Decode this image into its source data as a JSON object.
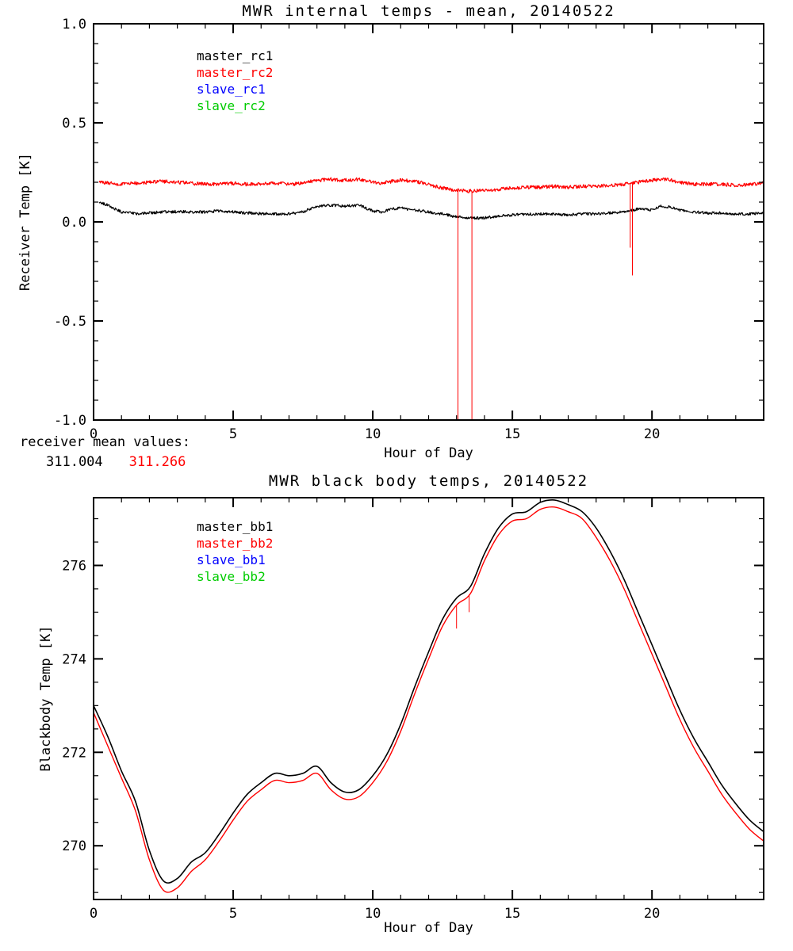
{
  "page": {
    "background": "#ffffff"
  },
  "annotation": {
    "label": "receiver mean values:",
    "values": [
      {
        "text": "311.004",
        "color": "#000000"
      },
      {
        "text": "311.266",
        "color": "#ff0000"
      }
    ]
  },
  "chart_data": [
    {
      "type": "line",
      "title": "MWR internal temps - mean, 20140522",
      "xlabel": "Hour of Day",
      "ylabel": "Receiver Temp [K]",
      "xlim": [
        0,
        24
      ],
      "ylim": [
        -1.0,
        1.0
      ],
      "xticks": [
        0,
        5,
        10,
        15,
        20
      ],
      "xtick_labels": [
        "0",
        "5",
        "10",
        "15",
        "20"
      ],
      "yticks": [
        -1.0,
        -0.5,
        0.0,
        0.5,
        1.0
      ],
      "ytick_labels": [
        "-1.0",
        "-0.5",
        "0.0",
        "0.5",
        "1.0"
      ],
      "minor_x": 1,
      "minor_y": 0.1,
      "grid": false,
      "legend_position": "upper-left-inside",
      "legend": [
        {
          "label": "master_rc1",
          "color": "#000000"
        },
        {
          "label": "master_rc2",
          "color": "#ff0000"
        },
        {
          "label": "slave_rc1",
          "color": "#0000ff"
        },
        {
          "label": "slave_rc2",
          "color": "#00cc00"
        }
      ],
      "series": [
        {
          "name": "master_rc1",
          "color": "#000000",
          "noise": 0.007,
          "width": 1.2,
          "x": [
            0.2,
            0.5,
            1,
            1.5,
            2,
            2.5,
            3,
            3.5,
            4,
            4.5,
            5,
            5.5,
            6,
            6.5,
            7,
            7.5,
            8,
            8.5,
            9,
            9.5,
            10,
            10.3,
            10.7,
            11,
            11.5,
            12,
            12.5,
            13,
            13.5,
            14,
            14.5,
            15,
            15.5,
            16,
            16.5,
            17,
            17.5,
            18,
            18.5,
            19,
            19.5,
            20,
            20.3,
            20.7,
            21,
            21.5,
            22,
            22.5,
            23,
            23.5,
            24
          ],
          "y": [
            0.1,
            0.085,
            0.05,
            0.042,
            0.045,
            0.05,
            0.052,
            0.05,
            0.05,
            0.055,
            0.05,
            0.045,
            0.042,
            0.04,
            0.04,
            0.05,
            0.08,
            0.085,
            0.08,
            0.085,
            0.055,
            0.05,
            0.065,
            0.07,
            0.06,
            0.05,
            0.04,
            0.025,
            0.02,
            0.02,
            0.03,
            0.035,
            0.04,
            0.04,
            0.04,
            0.035,
            0.04,
            0.04,
            0.045,
            0.05,
            0.065,
            0.06,
            0.08,
            0.075,
            0.06,
            0.05,
            0.045,
            0.045,
            0.04,
            0.04,
            0.045
          ]
        },
        {
          "name": "master_rc2",
          "color": "#ff0000",
          "noise": 0.009,
          "width": 1.2,
          "x": [
            0.2,
            0.5,
            1,
            1.5,
            2,
            2.5,
            3,
            3.5,
            4,
            4.5,
            5,
            5.5,
            6,
            6.5,
            7,
            7.5,
            8,
            8.5,
            9,
            9.5,
            10,
            10.3,
            10.7,
            11,
            11.5,
            12,
            12.5,
            13,
            13.5,
            14,
            14.5,
            15,
            15.5,
            16,
            16.5,
            17,
            17.5,
            18,
            18.5,
            19,
            19.5,
            20,
            20.3,
            20.7,
            21,
            21.5,
            22,
            22.5,
            23,
            23.5,
            24
          ],
          "y": [
            0.2,
            0.195,
            0.19,
            0.195,
            0.2,
            0.205,
            0.2,
            0.195,
            0.19,
            0.19,
            0.195,
            0.19,
            0.19,
            0.195,
            0.19,
            0.195,
            0.21,
            0.215,
            0.21,
            0.215,
            0.2,
            0.195,
            0.205,
            0.21,
            0.205,
            0.19,
            0.17,
            0.16,
            0.155,
            0.16,
            0.165,
            0.17,
            0.175,
            0.175,
            0.18,
            0.175,
            0.18,
            0.18,
            0.185,
            0.19,
            0.2,
            0.21,
            0.215,
            0.21,
            0.2,
            0.19,
            0.19,
            0.19,
            0.185,
            0.19,
            0.195
          ],
          "spikes": [
            {
              "x": 13.05,
              "to": -1.0
            },
            {
              "x": 13.55,
              "to": -1.0
            },
            {
              "x": 19.22,
              "to": -0.13
            },
            {
              "x": 19.3,
              "to": -0.27
            }
          ]
        }
      ]
    },
    {
      "type": "line",
      "title": "MWR black body temps, 20140522",
      "xlabel": "Hour of Day",
      "ylabel": "Blackbody Temp [K]",
      "xlim": [
        0,
        24
      ],
      "ylim": [
        268.85,
        277.45
      ],
      "xticks": [
        0,
        5,
        10,
        15,
        20
      ],
      "xtick_labels": [
        "0",
        "5",
        "10",
        "15",
        "20"
      ],
      "yticks": [
        270,
        272,
        274,
        276
      ],
      "ytick_labels": [
        "270",
        "272",
        "274",
        "276"
      ],
      "minor_x": 1,
      "minor_y": 0.5,
      "grid": false,
      "legend_position": "upper-left-inside",
      "legend": [
        {
          "label": "master_bb1",
          "color": "#000000"
        },
        {
          "label": "master_bb2",
          "color": "#ff0000"
        },
        {
          "label": "slave_bb1",
          "color": "#0000ff"
        },
        {
          "label": "slave_bb2",
          "color": "#00cc00"
        }
      ],
      "series": [
        {
          "name": "master_bb1",
          "color": "#000000",
          "smooth": true,
          "width": 1.6,
          "x": [
            0,
            0.5,
            1,
            1.5,
            2,
            2.5,
            3,
            3.5,
            4,
            4.5,
            5,
            5.5,
            6,
            6.5,
            7,
            7.5,
            8,
            8.5,
            9,
            9.5,
            10,
            10.5,
            11,
            11.5,
            12,
            12.5,
            13,
            13.5,
            14,
            14.5,
            15,
            15.5,
            16,
            16.5,
            17,
            17.5,
            18,
            18.5,
            19,
            19.5,
            20,
            20.5,
            21,
            21.5,
            22,
            22.5,
            23,
            23.5,
            24
          ],
          "y": [
            273.0,
            272.35,
            271.6,
            270.95,
            269.9,
            269.25,
            269.3,
            269.65,
            269.85,
            270.25,
            270.7,
            271.1,
            271.35,
            271.55,
            271.5,
            271.55,
            271.7,
            271.35,
            271.15,
            271.2,
            271.5,
            271.95,
            272.6,
            273.4,
            274.15,
            274.85,
            275.3,
            275.55,
            276.25,
            276.8,
            277.1,
            277.15,
            277.35,
            277.4,
            277.3,
            277.15,
            276.8,
            276.3,
            275.7,
            275.0,
            274.3,
            273.6,
            272.9,
            272.3,
            271.8,
            271.3,
            270.9,
            270.55,
            270.3
          ]
        },
        {
          "name": "master_bb2",
          "color": "#ff0000",
          "smooth": true,
          "width": 1.4,
          "x": [
            0,
            0.5,
            1,
            1.5,
            2,
            2.5,
            3,
            3.5,
            4,
            4.5,
            5,
            5.5,
            6,
            6.5,
            7,
            7.5,
            8,
            8.5,
            9,
            9.5,
            10,
            10.5,
            11,
            11.5,
            12,
            12.5,
            13,
            13.5,
            14,
            14.5,
            15,
            15.5,
            16,
            16.5,
            17,
            17.5,
            18,
            18.5,
            19,
            19.5,
            20,
            20.5,
            21,
            21.5,
            22,
            22.5,
            23,
            23.5,
            24
          ],
          "y": [
            272.85,
            272.15,
            271.45,
            270.75,
            269.7,
            269.05,
            269.1,
            269.45,
            269.7,
            270.1,
            270.55,
            270.95,
            271.2,
            271.4,
            271.35,
            271.4,
            271.55,
            271.2,
            271.0,
            271.05,
            271.35,
            271.8,
            272.45,
            273.25,
            274.0,
            274.7,
            275.15,
            275.4,
            276.1,
            276.65,
            276.95,
            277.0,
            277.2,
            277.25,
            277.15,
            277.0,
            276.6,
            276.1,
            275.5,
            274.8,
            274.1,
            273.4,
            272.7,
            272.1,
            271.6,
            271.1,
            270.7,
            270.35,
            270.1
          ],
          "spikes": [
            {
              "x": 13.0,
              "to": 274.65
            },
            {
              "x": 13.45,
              "to": 275.0
            }
          ]
        }
      ]
    }
  ]
}
